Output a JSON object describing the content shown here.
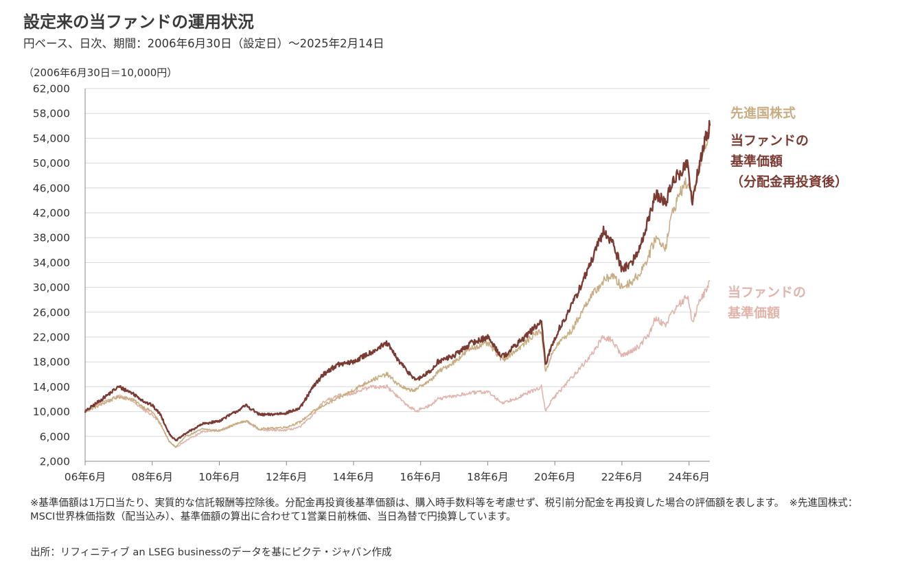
{
  "title": "設定来の当ファンドの運用状況",
  "subtitle": "円ベース、日次、期間：2006年6月30日（設定日）～2025年2月14日",
  "legend": {
    "msci": "先進国株式",
    "reinvested_line1": "当ファンドの",
    "reinvested_line2": "基準価額",
    "reinvested_line3": "（分配金再投資後）",
    "fund_line1": "当ファンドの",
    "fund_line2": "基準価額"
  },
  "notes": {
    "note1": "※基準価額は1万口当たり、実質的な信託報酬等控除後。分配金再投資後基準価額は、購入時手数料等を考慮せず、税引前分配金を再投資した場合の評価額を表します。　※先進国株式：MSCI世界株価指数（配当込み）、基準価額の算出に合わせて1営業日前株価、当日為替で円換算しています。",
    "source": "出所：リフィニティブ an LSEG businessのデータを基にピクテ・ジャパン作成"
  },
  "colors": {
    "msci": "#c8ad82",
    "reinvested": "#7b3a32",
    "fund": "#e0b4aa",
    "grid": "#d9d9d9",
    "axis": "#888888"
  },
  "chart_data": {
    "type": "line",
    "base_note": "（2006年6月30日＝10,000円）",
    "y_ticks": [
      "62,000",
      "58,000",
      "54,000",
      "50,000",
      "46,000",
      "42,000",
      "38,000",
      "34,000",
      "30,000",
      "26,000",
      "22,000",
      "18,000",
      "14,000",
      "10,000",
      "6,000",
      "2,000"
    ],
    "x_ticks": [
      "06年6月",
      "08年6月",
      "10年6月",
      "12年6月",
      "14年6月",
      "16年6月",
      "18年6月",
      "20年6月",
      "22年6月",
      "24年6月"
    ],
    "ylim": [
      2000,
      62000
    ],
    "xlim": [
      2006.5,
      2025.12
    ],
    "grid": "horizontal",
    "series": [
      {
        "name": "先進国株式",
        "color": "#c8ad82",
        "x": [
          2006.5,
          2007.0,
          2007.5,
          2007.9,
          2008.3,
          2008.5,
          2008.75,
          2009.0,
          2009.2,
          2009.5,
          2010.0,
          2010.5,
          2011.0,
          2011.3,
          2011.7,
          2012.0,
          2012.5,
          2012.9,
          2013.3,
          2013.6,
          2014.0,
          2014.5,
          2015.0,
          2015.5,
          2015.8,
          2016.1,
          2016.4,
          2016.5,
          2016.8,
          2017.0,
          2017.5,
          2018.0,
          2018.5,
          2018.9,
          2019.0,
          2019.5,
          2019.9,
          2020.1,
          2020.22,
          2020.4,
          2020.6,
          2021.0,
          2021.5,
          2021.95,
          2022.2,
          2022.5,
          2022.8,
          2023.0,
          2023.3,
          2023.5,
          2023.8,
          2024.0,
          2024.25,
          2024.45,
          2024.6,
          2024.8,
          2025.0,
          2025.12
        ],
        "y": [
          10000,
          11200,
          12400,
          12000,
          10500,
          10000,
          8000,
          5200,
          4300,
          6000,
          7200,
          6900,
          8000,
          8500,
          7200,
          7300,
          7500,
          8300,
          10000,
          11000,
          12000,
          13500,
          15000,
          16000,
          14500,
          13500,
          13500,
          14200,
          15000,
          16300,
          18000,
          20200,
          21000,
          18500,
          18500,
          20500,
          22500,
          23000,
          16500,
          19000,
          21000,
          23000,
          28000,
          31000,
          32000,
          30000,
          31000,
          32000,
          35000,
          38000,
          36500,
          42000,
          45500,
          47000,
          44000,
          49000,
          53000,
          56000
        ]
      },
      {
        "name": "当ファンドの基準価額（分配金再投資後）",
        "color": "#7b3a32",
        "x": [
          2006.5,
          2007.0,
          2007.5,
          2007.9,
          2008.3,
          2008.5,
          2008.75,
          2009.0,
          2009.2,
          2009.5,
          2010.0,
          2010.5,
          2011.0,
          2011.3,
          2011.7,
          2012.0,
          2012.5,
          2012.9,
          2013.3,
          2013.6,
          2014.0,
          2014.5,
          2015.0,
          2015.5,
          2015.8,
          2016.1,
          2016.4,
          2016.5,
          2016.8,
          2017.0,
          2017.5,
          2018.0,
          2018.5,
          2018.9,
          2019.0,
          2019.5,
          2019.9,
          2020.1,
          2020.22,
          2020.4,
          2020.6,
          2021.0,
          2021.5,
          2021.95,
          2022.2,
          2022.5,
          2022.8,
          2023.0,
          2023.3,
          2023.5,
          2023.8,
          2024.0,
          2024.25,
          2024.45,
          2024.6,
          2024.8,
          2025.0,
          2025.12
        ],
        "y": [
          10000,
          12000,
          14000,
          13000,
          11500,
          11000,
          9500,
          6500,
          5300,
          6500,
          8000,
          8500,
          10000,
          11000,
          9500,
          9500,
          9800,
          10500,
          14000,
          16000,
          17500,
          18000,
          19500,
          21000,
          18500,
          16500,
          15000,
          15500,
          16500,
          18000,
          19000,
          21000,
          22000,
          19000,
          19000,
          21500,
          23500,
          24500,
          17500,
          20500,
          23000,
          27000,
          33000,
          39000,
          37500,
          33000,
          34000,
          36000,
          41000,
          45000,
          43500,
          47000,
          48500,
          50000,
          43500,
          49500,
          54000,
          56000
        ]
      },
      {
        "name": "当ファンドの基準価額",
        "color": "#e0b4aa",
        "x": [
          2006.5,
          2007.0,
          2007.5,
          2007.9,
          2008.3,
          2008.5,
          2008.75,
          2009.0,
          2009.2,
          2009.5,
          2010.0,
          2010.5,
          2011.0,
          2011.3,
          2011.7,
          2012.0,
          2012.5,
          2012.9,
          2013.3,
          2013.6,
          2014.0,
          2014.5,
          2015.0,
          2015.5,
          2015.8,
          2016.1,
          2016.4,
          2016.5,
          2016.8,
          2017.0,
          2017.5,
          2018.0,
          2018.5,
          2018.9,
          2019.0,
          2019.5,
          2019.9,
          2020.1,
          2020.22,
          2020.4,
          2020.6,
          2021.0,
          2021.5,
          2021.95,
          2022.2,
          2022.5,
          2022.8,
          2023.0,
          2023.3,
          2023.5,
          2023.8,
          2024.0,
          2024.25,
          2024.45,
          2024.6,
          2024.8,
          2025.0,
          2025.12
        ],
        "y": [
          10000,
          11500,
          12500,
          11800,
          10000,
          9500,
          8000,
          5300,
          4200,
          5300,
          6800,
          7000,
          8000,
          8500,
          7000,
          7000,
          7000,
          7500,
          9500,
          11500,
          12500,
          13000,
          14000,
          14000,
          12500,
          11000,
          10000,
          10500,
          11000,
          12000,
          12500,
          13000,
          13200,
          11500,
          11500,
          12500,
          13500,
          14000,
          10000,
          11800,
          13000,
          15500,
          18500,
          22000,
          21500,
          19000,
          19800,
          20500,
          22500,
          25000,
          24000,
          26000,
          27500,
          28500,
          24500,
          27500,
          29500,
          31000
        ]
      }
    ]
  }
}
